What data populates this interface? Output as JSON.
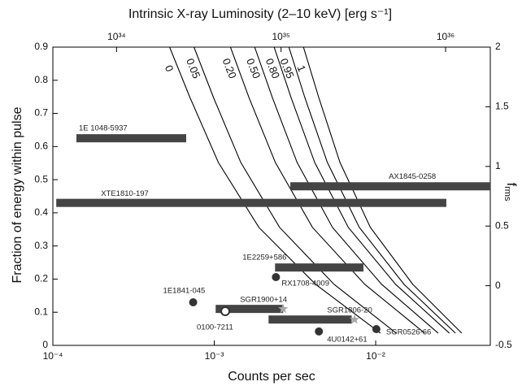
{
  "chart_data": {
    "type": "scatter",
    "title": "Intrinsic X-ray Luminosity (2–10 keV) [erg s⁻¹]",
    "xlabel": "Counts per sec",
    "ylabel": "Fraction of energy within pulse",
    "y2label": "f",
    "y2label_sub": "rms",
    "xscale": "log",
    "xlim": [
      0.0001,
      0.0513
    ],
    "xticks": [
      {
        "value": 0.0001,
        "label": "10⁻⁴"
      },
      {
        "value": 0.001,
        "label": "10⁻³"
      },
      {
        "value": 0.01,
        "label": "10⁻²"
      }
    ],
    "x2lim": [
      4.1e+33,
      1.87e+36
    ],
    "x2ticks": [
      {
        "value": 1e+34,
        "label": "10³⁴"
      },
      {
        "value": 1e+35,
        "label": "10³⁵"
      },
      {
        "value": 1e+36,
        "label": "10³⁶"
      }
    ],
    "ylim": [
      0,
      0.9
    ],
    "yticks": [
      0,
      0.1,
      0.2,
      0.3,
      0.4,
      0.5,
      0.6,
      0.7,
      0.8,
      0.9
    ],
    "y2lim": [
      -0.5,
      2
    ],
    "y2ticks": [
      -0.5,
      0,
      0.5,
      1,
      1.5,
      2
    ],
    "bars": [
      {
        "name": "1E 1048-5937",
        "x": [
          0.00014,
          0.00067
        ],
        "y": 0.625,
        "color": "#444444"
      },
      {
        "name": "XTE1810-197",
        "x": [
          0.000105,
          0.0274
        ],
        "y": 0.43,
        "color": "#444444"
      },
      {
        "name": "AX1845-0258",
        "x": [
          0.00296,
          0.0513
        ],
        "y": 0.48,
        "color": "#444444"
      },
      {
        "name": "1E2259+586",
        "x": [
          0.00238,
          0.0084
        ],
        "y": 0.235,
        "color": "#444444"
      },
      {
        "name": "SGR1900+14",
        "x": [
          0.00102,
          0.00267
        ],
        "y": 0.11,
        "color": "#444444"
      },
      {
        "name": "SGR1806-20",
        "x": [
          0.00217,
          0.0071
        ],
        "y": 0.078,
        "color": "#444444"
      }
    ],
    "points": [
      {
        "name": "1E1841-045",
        "x": 0.00074,
        "y": 0.13,
        "marker": "circle",
        "color": "#333333"
      },
      {
        "name": "RX1708-4009",
        "x": 0.00241,
        "y": 0.206,
        "marker": "circle",
        "color": "#333333"
      },
      {
        "name": "0100-7211",
        "x": 0.00117,
        "y": 0.103,
        "marker": "open-circle",
        "color": "#333333"
      },
      {
        "name": "4U0142+61",
        "x": 0.00445,
        "y": 0.042,
        "marker": "circle",
        "color": "#333333"
      },
      {
        "name": "SGR0526-66",
        "x": 0.0101,
        "y": 0.049,
        "marker": "circle",
        "color": "#333333"
      },
      {
        "x": 0.00267,
        "y": 0.11,
        "marker": "star",
        "color": "#a8a8a8"
      },
      {
        "x": 0.0074,
        "y": 0.078,
        "marker": "star",
        "color": "#a8a8a8"
      }
    ],
    "curves": [
      {
        "name": "0",
        "x": [
          0.000529,
          0.000707,
          0.00106,
          0.00189,
          0.00425,
          0.0107
        ],
        "y": [
          0.9,
          0.748,
          0.552,
          0.356,
          0.184,
          0.037
        ],
        "color": "#000000"
      },
      {
        "name": "0.05",
        "x": [
          0.000749,
          0.000989,
          0.00146,
          0.00254,
          0.00553,
          0.0134
        ],
        "y": [
          0.9,
          0.748,
          0.552,
          0.356,
          0.184,
          0.037
        ],
        "color": "#000000"
      },
      {
        "name": "0.20",
        "x": [
          0.00126,
          0.00164,
          0.00239,
          0.00406,
          0.00857,
          0.0201
        ],
        "y": [
          0.9,
          0.748,
          0.552,
          0.356,
          0.184,
          0.037
        ],
        "color": "#000000"
      },
      {
        "name": "0.50",
        "x": [
          0.00178,
          0.00229,
          0.00326,
          0.0054,
          0.0109,
          0.0244
        ],
        "y": [
          0.9,
          0.748,
          0.552,
          0.356,
          0.184,
          0.037
        ],
        "color": "#000000"
      },
      {
        "name": "0.80",
        "x": [
          0.00235,
          0.00299,
          0.00419,
          0.00677,
          0.0133,
          0.0286
        ],
        "y": [
          0.9,
          0.748,
          0.552,
          0.356,
          0.184,
          0.037
        ],
        "color": "#000000"
      },
      {
        "name": "0.95",
        "x": [
          0.0029,
          0.00364,
          0.00502,
          0.00792,
          0.015,
          0.0312
        ],
        "y": [
          0.9,
          0.748,
          0.552,
          0.356,
          0.184,
          0.037
        ],
        "color": "#000000"
      },
      {
        "name": "1",
        "x": [
          0.00357,
          0.00444,
          0.00601,
          0.00927,
          0.017,
          0.0341
        ],
        "y": [
          0.9,
          0.748,
          0.552,
          0.356,
          0.184,
          0.037
        ],
        "color": "#000000"
      }
    ]
  }
}
